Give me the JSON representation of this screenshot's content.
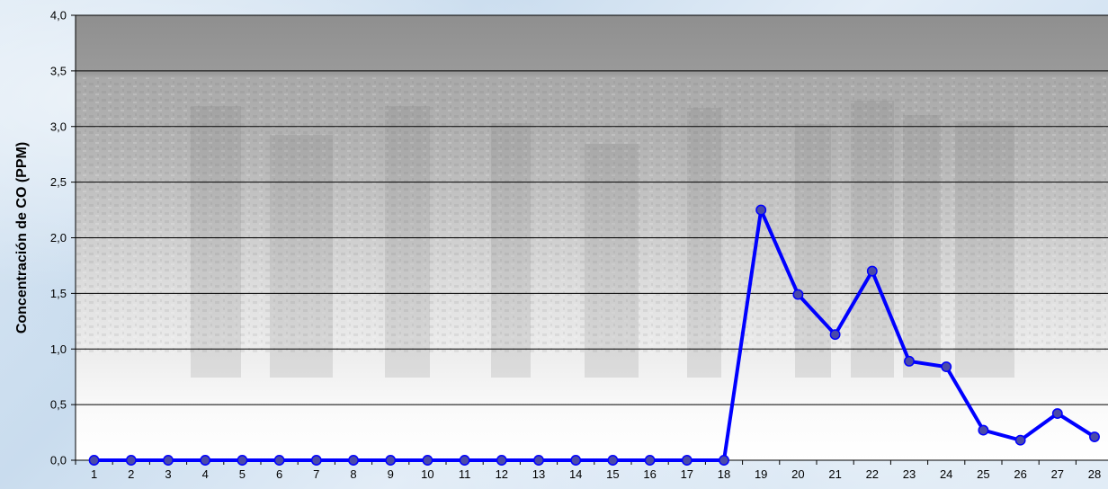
{
  "chart_data": {
    "type": "line",
    "title": "",
    "xlabel": "",
    "ylabel": "Concentración de CO (PPM)",
    "ylim": [
      0,
      4
    ],
    "y_ticks": [
      "0,0",
      "0,5",
      "1,0",
      "1,5",
      "2,0",
      "2,5",
      "3,0",
      "3,5",
      "4,0"
    ],
    "y_tick_values": [
      0,
      0.5,
      1.0,
      1.5,
      2.0,
      2.5,
      3.0,
      3.5,
      4.0
    ],
    "grid": true,
    "legend": "none",
    "categories": [
      "1",
      "2",
      "3",
      "4",
      "5",
      "6",
      "7",
      "8",
      "9",
      "10",
      "11",
      "12",
      "13",
      "14",
      "15",
      "16",
      "17",
      "18",
      "19",
      "20",
      "21",
      "22",
      "23",
      "24",
      "25",
      "26",
      "27",
      "28"
    ],
    "series": [
      {
        "values": [
          0,
          0,
          0,
          0,
          0,
          0,
          0,
          0,
          0,
          0,
          0,
          0,
          0,
          0,
          0,
          0,
          0,
          0,
          2.25,
          1.49,
          1.13,
          1.7,
          0.89,
          0.84,
          0.27,
          0.18,
          0.42,
          0.21
        ],
        "color": "#0000ff",
        "marker_color": "#4a4aa8"
      }
    ]
  }
}
